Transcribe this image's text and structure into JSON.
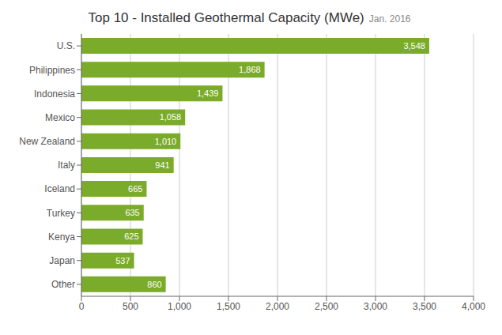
{
  "chart_data": {
    "type": "bar",
    "title": "Top 10 - Installed Geothermal Capacity (MWe)",
    "subtitle": "Jan. 2016",
    "orientation": "horizontal",
    "categories": [
      "U.S.",
      "Philippines",
      "Indonesia",
      "Mexico",
      "New Zealand",
      "Italy",
      "Iceland",
      "Turkey",
      "Kenya",
      "Japan",
      "Other"
    ],
    "values": [
      3548,
      1868,
      1439,
      1058,
      1010,
      941,
      665,
      635,
      625,
      537,
      860
    ],
    "value_labels": [
      "3,548",
      "1,868",
      "1,439",
      "1,058",
      "1,010",
      "941",
      "665",
      "635",
      "625",
      "537",
      "860"
    ],
    "data_labels": true,
    "color": "#7aab2a",
    "xlim": [
      0,
      4000
    ],
    "xticks": [
      0,
      500,
      {
        "value": 1000,
        "label": "1,000"
      },
      {
        "value": 1500,
        "label": "1,500"
      },
      {
        "value": 2000,
        "label": "2,000"
      },
      {
        "value": 2500,
        "label": "2,500"
      },
      {
        "value": 3000,
        "label": "3,000"
      },
      {
        "value": 3500,
        "label": "3,500"
      },
      {
        "value": 4000,
        "label": "4,000"
      }
    ],
    "grid": true
  }
}
